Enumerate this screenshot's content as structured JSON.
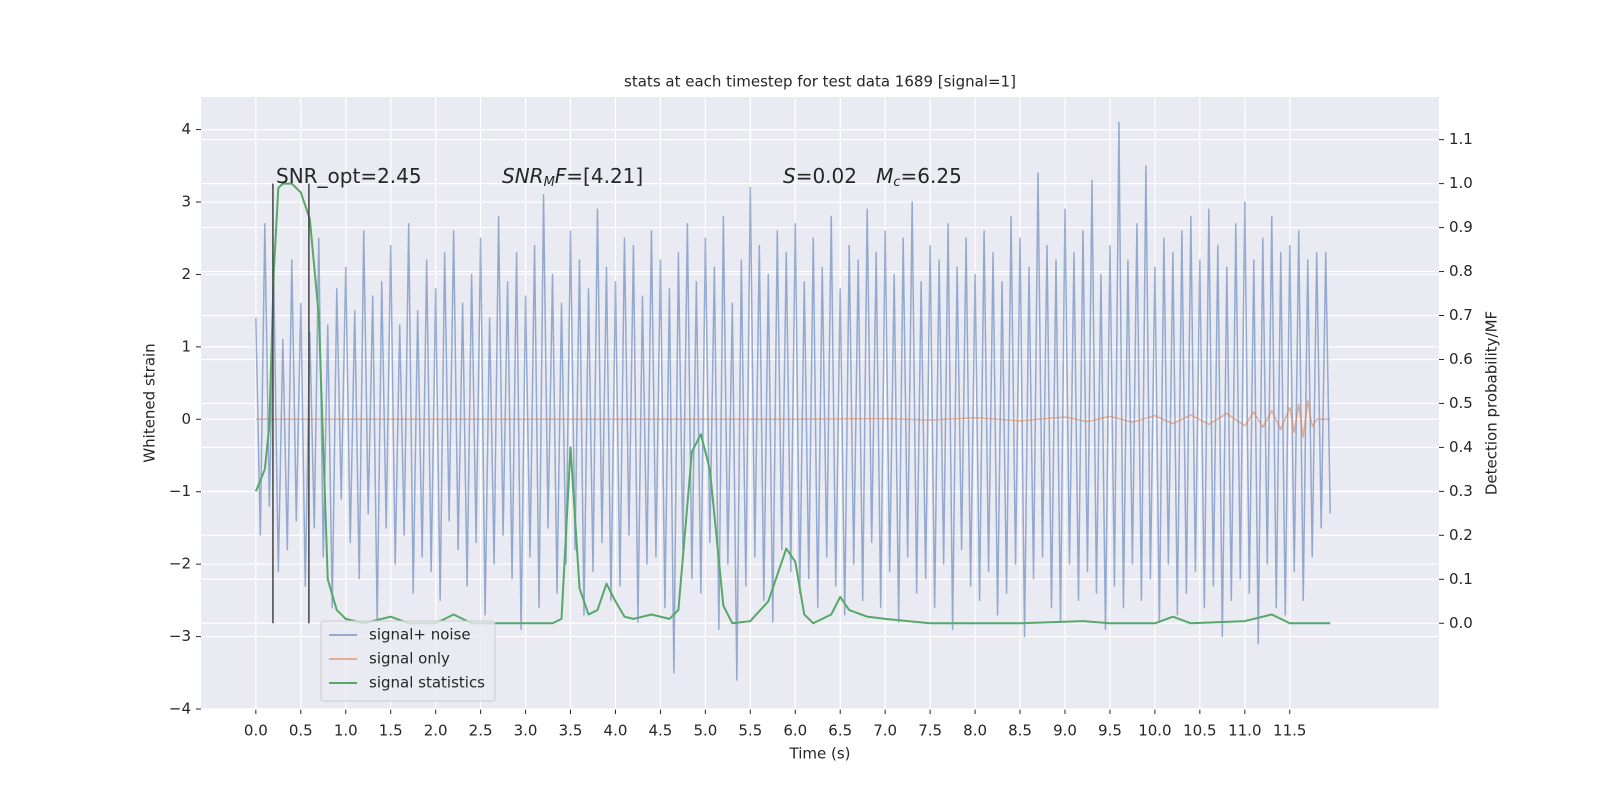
{
  "chart_data": {
    "type": "line",
    "title": "stats at each timestep for test data 1689 [signal=1]",
    "x_label": "Time (s)",
    "y_label": "Whitened strain",
    "y2_label": "Detection probability/MF",
    "xlim": [
      -0.61,
      13.16
    ],
    "ylim": [
      -4.0,
      4.45
    ],
    "y2lim": [
      -0.195,
      1.197
    ],
    "xticks": [
      {
        "value": 0,
        "label": "0.0"
      },
      {
        "value": 0.5,
        "label": "0.5"
      },
      {
        "value": 1,
        "label": "1.0"
      },
      {
        "value": 1.5,
        "label": "1.5"
      },
      {
        "value": 2,
        "label": "2.0"
      },
      {
        "value": 2.5,
        "label": "2.5"
      },
      {
        "value": 3,
        "label": "3.0"
      },
      {
        "value": 3.5,
        "label": "3.5"
      },
      {
        "value": 4,
        "label": "4.0"
      },
      {
        "value": 4.5,
        "label": "4.5"
      },
      {
        "value": 5,
        "label": "5.0"
      },
      {
        "value": 5.5,
        "label": "5.5"
      },
      {
        "value": 6,
        "label": "6.0"
      },
      {
        "value": 6.5,
        "label": "6.5"
      },
      {
        "value": 7,
        "label": "7.0"
      },
      {
        "value": 7.5,
        "label": "7.5"
      },
      {
        "value": 8,
        "label": "8.0"
      },
      {
        "value": 8.5,
        "label": "8.5"
      },
      {
        "value": 9,
        "label": "9.0"
      },
      {
        "value": 9.5,
        "label": "9.5"
      },
      {
        "value": 10,
        "label": "10.0"
      },
      {
        "value": 10.5,
        "label": "10.5"
      },
      {
        "value": 11,
        "label": "11.0"
      },
      {
        "value": 11.5,
        "label": "11.5"
      }
    ],
    "yticks": [
      {
        "value": -4,
        "label": "−4"
      },
      {
        "value": -3,
        "label": "−3"
      },
      {
        "value": -2,
        "label": "−2"
      },
      {
        "value": -1,
        "label": "−1"
      },
      0,
      1,
      2,
      3,
      4
    ],
    "y2ticks": [
      {
        "value": 0,
        "label": "0.0"
      },
      {
        "value": 0.1,
        "label": "0.1"
      },
      {
        "value": 0.2,
        "label": "0.2"
      },
      {
        "value": 0.3,
        "label": "0.3"
      },
      {
        "value": 0.4,
        "label": "0.4"
      },
      {
        "value": 0.5,
        "label": "0.5"
      },
      {
        "value": 0.6,
        "label": "0.6"
      },
      {
        "value": 0.7,
        "label": "0.7"
      },
      {
        "value": 0.8,
        "label": "0.8"
      },
      {
        "value": 0.9,
        "label": "0.9"
      },
      {
        "value": 1,
        "label": "1.0"
      },
      {
        "value": 1.1,
        "label": "1.1"
      }
    ],
    "grid": true,
    "background": "#eaeaf2",
    "legend_loc": "lower left",
    "series": [
      {
        "name": "signal+ noise",
        "color": "#4c72b0",
        "opacity": 0.55,
        "axis": "y",
        "x": [
          0,
          0.05,
          0.1,
          0.15,
          0.2,
          0.25,
          0.3,
          0.35,
          0.4,
          0.45,
          0.5,
          0.55,
          0.6,
          0.65,
          0.7,
          0.75,
          0.8,
          0.85,
          0.9,
          0.95,
          1,
          1.05,
          1.1,
          1.15,
          1.2,
          1.25,
          1.3,
          1.35,
          1.4,
          1.45,
          1.5,
          1.55,
          1.6,
          1.65,
          1.7,
          1.75,
          1.8,
          1.85,
          1.9,
          1.95,
          2,
          2.05,
          2.1,
          2.15,
          2.2,
          2.25,
          2.3,
          2.35,
          2.4,
          2.45,
          2.5,
          2.55,
          2.6,
          2.65,
          2.7,
          2.75,
          2.8,
          2.85,
          2.9,
          2.95,
          3,
          3.05,
          3.1,
          3.15,
          3.2,
          3.25,
          3.3,
          3.35,
          3.4,
          3.45,
          3.5,
          3.55,
          3.6,
          3.65,
          3.7,
          3.75,
          3.8,
          3.85,
          3.9,
          3.95,
          4,
          4.05,
          4.1,
          4.15,
          4.2,
          4.25,
          4.3,
          4.35,
          4.4,
          4.45,
          4.5,
          4.55,
          4.6,
          4.65,
          4.7,
          4.75,
          4.8,
          4.85,
          4.9,
          4.95,
          5,
          5.05,
          5.1,
          5.15,
          5.2,
          5.25,
          5.3,
          5.35,
          5.4,
          5.45,
          5.5,
          5.55,
          5.6,
          5.65,
          5.7,
          5.75,
          5.8,
          5.85,
          5.9,
          5.95,
          6,
          6.05,
          6.1,
          6.15,
          6.2,
          6.25,
          6.3,
          6.35,
          6.4,
          6.45,
          6.5,
          6.55,
          6.6,
          6.65,
          6.7,
          6.75,
          6.8,
          6.85,
          6.9,
          6.95,
          7,
          7.05,
          7.1,
          7.15,
          7.2,
          7.25,
          7.3,
          7.35,
          7.4,
          7.45,
          7.5,
          7.55,
          7.6,
          7.65,
          7.7,
          7.75,
          7.8,
          7.85,
          7.9,
          7.95,
          8,
          8.05,
          8.1,
          8.15,
          8.2,
          8.25,
          8.3,
          8.35,
          8.4,
          8.45,
          8.5,
          8.55,
          8.6,
          8.65,
          8.7,
          8.75,
          8.8,
          8.85,
          8.9,
          8.95,
          9,
          9.05,
          9.1,
          9.15,
          9.2,
          9.25,
          9.3,
          9.35,
          9.4,
          9.45,
          9.5,
          9.55,
          9.6,
          9.65,
          9.7,
          9.75,
          9.8,
          9.85,
          9.9,
          9.95,
          10,
          10.05,
          10.1,
          10.15,
          10.2,
          10.25,
          10.3,
          10.35,
          10.4,
          10.45,
          10.5,
          10.55,
          10.6,
          10.65,
          10.7,
          10.75,
          10.8,
          10.85,
          10.9,
          10.95,
          11,
          11.05,
          11.1,
          11.15,
          11.2,
          11.25,
          11.3,
          11.35,
          11.4,
          11.45,
          11.5,
          11.55,
          11.6,
          11.65,
          11.7,
          11.75,
          11.8,
          11.85,
          11.9,
          11.95
        ],
        "values": [
          1.4,
          -1.6,
          2.7,
          -1.2,
          1.9,
          -2.1,
          1.1,
          -1.8,
          2.2,
          -1.4,
          1.6,
          -2.3,
          1.2,
          -1.5,
          2.5,
          -1.9,
          1.3,
          -2.6,
          1.8,
          -1.1,
          2.1,
          -1.7,
          1.5,
          -2.2,
          2.6,
          -1.3,
          1.7,
          -2.8,
          1.9,
          -1.5,
          2.4,
          -2.0,
          1.3,
          -1.6,
          2.7,
          -2.4,
          1.5,
          -1.9,
          2.2,
          -2.1,
          1.8,
          -2.5,
          2.3,
          -1.4,
          2.6,
          -1.8,
          1.6,
          -2.3,
          2.0,
          -1.7,
          2.5,
          -2.7,
          1.4,
          -2.0,
          2.8,
          -1.6,
          1.9,
          -2.2,
          2.3,
          -2.9,
          1.7,
          -1.9,
          2.4,
          -2.6,
          3.1,
          -1.5,
          2.0,
          -2.4,
          1.6,
          -2.0,
          2.6,
          -1.8,
          2.2,
          -2.7,
          1.8,
          -2.1,
          2.9,
          -1.7,
          2.1,
          -2.5,
          1.9,
          -2.3,
          2.5,
          -1.6,
          2.4,
          -2.8,
          1.7,
          -2.0,
          2.6,
          -1.9,
          2.2,
          -2.6,
          1.8,
          -3.5,
          2.3,
          -1.8,
          2.7,
          -2.2,
          1.9,
          -2.4,
          2.5,
          -1.7,
          2.1,
          -2.9,
          2.8,
          -2.0,
          1.6,
          -3.6,
          2.2,
          -2.3,
          3.2,
          -1.9,
          2.4,
          -2.5,
          2.0,
          -2.8,
          2.6,
          -1.8,
          2.3,
          -2.1,
          2.7,
          -2.4,
          1.9,
          -2.2,
          2.5,
          -2.6,
          2.1,
          -1.9,
          2.8,
          -2.3,
          1.8,
          -2.7,
          2.4,
          -2.0,
          2.2,
          -2.5,
          2.9,
          -1.7,
          2.3,
          -2.6,
          2.6,
          -2.1,
          2.0,
          -2.8,
          2.5,
          -1.9,
          3.0,
          -2.4,
          1.9,
          -2.2,
          2.4,
          -2.6,
          2.2,
          -2.0,
          2.7,
          -2.9,
          2.1,
          -1.8,
          2.5,
          -2.3,
          2.0,
          -2.5,
          2.6,
          -2.1,
          2.3,
          -2.7,
          1.9,
          -2.4,
          2.8,
          -2.0,
          2.5,
          -3.0,
          2.1,
          -2.2,
          3.4,
          -1.9,
          2.4,
          -2.6,
          2.2,
          -2.8,
          2.9,
          -2.0,
          2.3,
          -2.5,
          2.6,
          -2.1,
          3.3,
          -2.4,
          2.0,
          -2.9,
          2.4,
          -2.3,
          4.1,
          -2.6,
          2.2,
          -2.0,
          2.7,
          -2.5,
          3.5,
          -2.2,
          2.1,
          -2.8,
          2.5,
          -2.0,
          2.3,
          -2.7,
          2.6,
          -2.4,
          2.8,
          -2.1,
          2.2,
          -2.6,
          2.9,
          -2.3,
          2.4,
          -3.0,
          2.1,
          -2.5,
          2.7,
          -2.2,
          3.0,
          -2.4,
          2.2,
          -3.1,
          2.5,
          -2.0,
          2.8,
          -2.6,
          2.3,
          -2.7,
          2.4,
          -2.1,
          2.6,
          -2.5,
          2.2,
          -1.9,
          2.3,
          -1.5,
          2.3,
          -1.3
        ]
      },
      {
        "name": "signal only",
        "color": "#dd8452",
        "opacity": 0.6,
        "axis": "y",
        "x": [
          0,
          6,
          7,
          7.5,
          8,
          8.5,
          9,
          9.25,
          9.5,
          9.75,
          10,
          10.2,
          10.4,
          10.6,
          10.8,
          11,
          11.1,
          11.2,
          11.3,
          11.4,
          11.5,
          11.55,
          11.6,
          11.65,
          11.7,
          11.75,
          11.8,
          11.95
        ],
        "values": [
          0,
          0,
          0.01,
          -0.01,
          0.02,
          -0.02,
          0.03,
          -0.03,
          0.04,
          -0.04,
          0.05,
          -0.06,
          0.06,
          -0.07,
          0.08,
          -0.09,
          0.1,
          -0.11,
          0.12,
          -0.14,
          0.16,
          -0.18,
          0.21,
          -0.25,
          0.26,
          -0.1,
          0,
          0
        ]
      },
      {
        "name": "signal statistics",
        "color": "#55a868",
        "opacity": 1,
        "axis": "y2",
        "x": [
          0,
          0.1,
          0.15,
          0.2,
          0.25,
          0.3,
          0.4,
          0.5,
          0.6,
          0.7,
          0.75,
          0.8,
          0.9,
          1,
          1.2,
          1.5,
          1.7,
          2,
          2.2,
          2.4,
          3.3,
          3.4,
          3.5,
          3.6,
          3.7,
          3.8,
          3.9,
          4,
          4.1,
          4.2,
          4.4,
          4.6,
          4.7,
          4.85,
          4.95,
          5.05,
          5.2,
          5.3,
          5.5,
          5.7,
          5.9,
          6,
          6.1,
          6.2,
          6.4,
          6.5,
          6.6,
          6.8,
          7,
          7.5,
          8.5,
          9.2,
          9.5,
          10,
          10.2,
          10.4,
          11,
          11.3,
          11.5,
          11.95
        ],
        "values": [
          0.3,
          0.35,
          0.45,
          0.8,
          0.99,
          1.0,
          1.0,
          0.98,
          0.92,
          0.7,
          0.4,
          0.1,
          0.03,
          0.01,
          0,
          0.015,
          0,
          0,
          0.02,
          0,
          0,
          0.01,
          0.4,
          0.08,
          0.02,
          0.03,
          0.09,
          0.05,
          0.015,
          0.01,
          0.02,
          0.01,
          0.03,
          0.39,
          0.43,
          0.35,
          0.04,
          0,
          0.005,
          0.05,
          0.17,
          0.14,
          0.02,
          0,
          0.02,
          0.06,
          0.03,
          0.015,
          0.01,
          0,
          0,
          0.005,
          0,
          0,
          0.015,
          0,
          0.005,
          0.02,
          0,
          0
        ]
      }
    ],
    "vlines": {
      "color": "#444444",
      "axis": "y2",
      "x": [
        0.19,
        0.59
      ],
      "ymin": [
        0,
        0
      ],
      "ymax": [
        1,
        1
      ]
    },
    "annotations": [
      [
        {
          "text": "SNR_opt=2.45",
          "italic": false,
          "sub": false
        }
      ],
      [
        {
          "text": "SNR",
          "italic": true,
          "sub": false
        },
        {
          "text": "M",
          "italic": true,
          "sub": true
        },
        {
          "text": "F",
          "italic": true,
          "sub": false
        },
        {
          "text": "=[4.21]",
          "italic": false,
          "sub": false
        }
      ],
      [
        {
          "text": "S",
          "italic": true,
          "sub": false
        },
        {
          "text": "=0.02   ",
          "italic": false,
          "sub": false
        },
        {
          "text": "M",
          "italic": true,
          "sub": false
        },
        {
          "text": "c",
          "italic": true,
          "sub": true
        },
        {
          "text": "=6.25",
          "italic": false,
          "sub": false
        }
      ]
    ]
  }
}
